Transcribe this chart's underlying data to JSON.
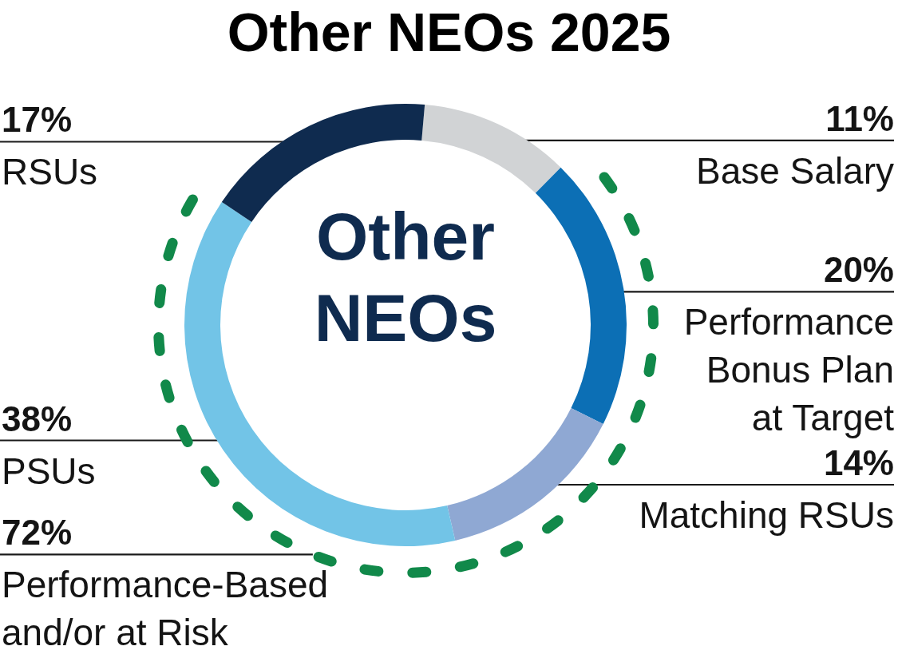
{
  "chart_data": {
    "type": "donut",
    "title": "Other NEOs 2025",
    "categories": [
      "Base Salary",
      "Performance Bonus Plan at Target",
      "Matching RSUs",
      "PSUs",
      "RSUs"
    ],
    "values": [
      11,
      20,
      14,
      38,
      17
    ],
    "colors": [
      "#d1d3d5",
      "#0c6fb5",
      "#8fa8d3",
      "#72c4e7",
      "#0f2b4f"
    ],
    "value_labels": [
      "11%",
      "20%",
      "14%",
      "38%",
      "17%"
    ],
    "annotations": [
      "Other NEOs",
      "72%",
      "Performance-Based and/or at Risk"
    ]
  }
}
